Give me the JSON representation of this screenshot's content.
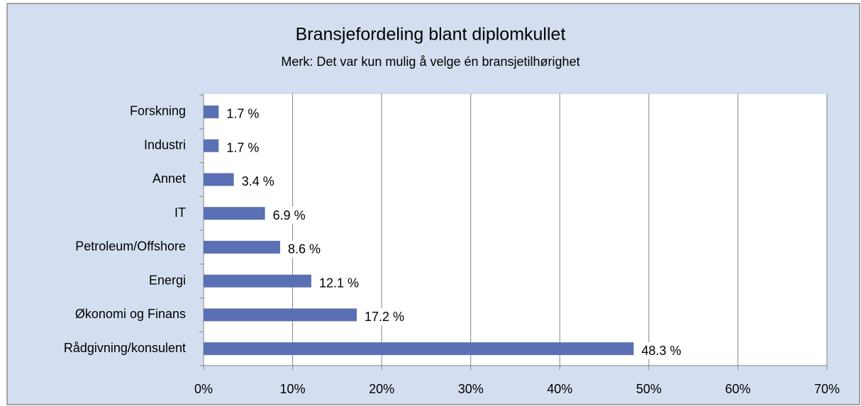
{
  "chart_data": {
    "type": "bar",
    "orientation": "horizontal",
    "title": "Bransjefordeling blant diplomkullet",
    "subtitle": "Merk: Det var kun mulig å velge én bransjetilhørighet",
    "categories": [
      "Forskning",
      "Industri",
      "Annet",
      "IT",
      "Petroleum/Offshore",
      "Energi",
      "Økonomi og Finans",
      "Rådgivning/konsulent"
    ],
    "values": [
      1.7,
      1.7,
      3.4,
      6.9,
      8.6,
      12.1,
      17.2,
      48.3
    ],
    "value_labels": [
      "1.7 %",
      "1.7 %",
      "3.4 %",
      "6.9 %",
      "8.6 %",
      "12.1 %",
      "17.2 %",
      "48.3 %"
    ],
    "color": "#5b70b4",
    "xlim": [
      0,
      70
    ],
    "xticks": [
      {
        "value": 0,
        "label": "0%"
      },
      {
        "value": 10,
        "label": "10%"
      },
      {
        "value": 20,
        "label": "20%"
      },
      {
        "value": 30,
        "label": "30%"
      },
      {
        "value": 40,
        "label": "40%"
      },
      {
        "value": 50,
        "label": "50%"
      },
      {
        "value": 60,
        "label": "60%"
      },
      {
        "value": 70,
        "label": "70%"
      }
    ],
    "grid": true
  }
}
